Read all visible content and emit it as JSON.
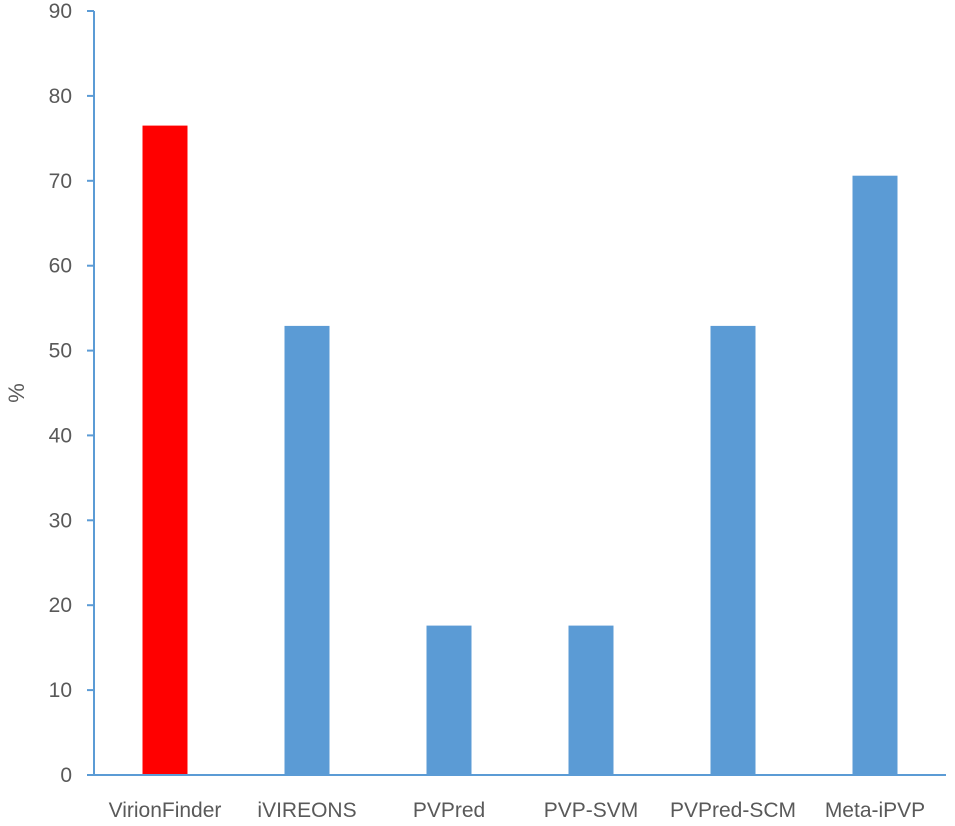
{
  "chart_data": {
    "type": "bar",
    "categories": [
      "VirionFinder",
      "iVIREONS",
      "PVPred",
      "PVP-SVM",
      "PVPred-SCM",
      "Meta-iPVP"
    ],
    "values": [
      76.5,
      52.9,
      17.6,
      17.6,
      52.9,
      70.6
    ],
    "bar_colors": [
      "#ff0000",
      "#5b9bd5",
      "#5b9bd5",
      "#5b9bd5",
      "#5b9bd5",
      "#5b9bd5"
    ],
    "ylabel": "%",
    "xlabel": "",
    "title": "",
    "ylim": [
      0,
      90
    ],
    "yticks": [
      0,
      10,
      20,
      30,
      40,
      50,
      60,
      70,
      80,
      90
    ],
    "ytick_labels": [
      "0",
      "10",
      "20",
      "30",
      "40",
      "50",
      "60",
      "70",
      "80",
      "90"
    ],
    "grid": false,
    "legend": "none",
    "axis_color": "#5b9bd5",
    "text_color": "#595959"
  }
}
